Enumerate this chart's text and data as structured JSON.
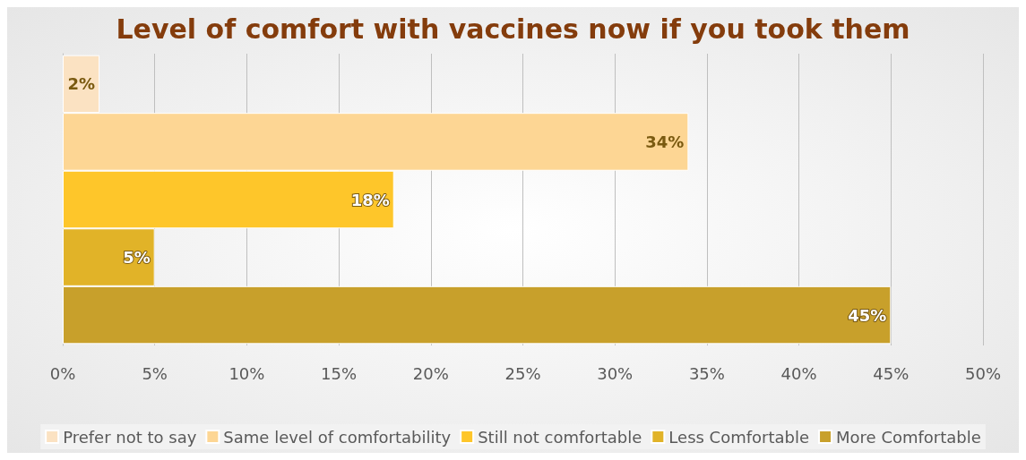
{
  "chart_data": {
    "type": "bar",
    "orientation": "horizontal",
    "title": "Level of comfort with vaccines now if you took them",
    "categories": [
      null
    ],
    "series": [
      {
        "name": "Prefer not to say",
        "color": "#fbe2c2",
        "values": [
          2
        ],
        "value_labels": [
          "2%"
        ]
      },
      {
        "name": "Same level of comfortability",
        "color": "#fdd694",
        "values": [
          34
        ],
        "value_labels": [
          "34%"
        ]
      },
      {
        "name": "Still not comfortable",
        "color": "#fec62a",
        "values": [
          18
        ],
        "value_labels": [
          "18%"
        ]
      },
      {
        "name": "Less Comfortable",
        "color": "#e1b328",
        "values": [
          5
        ],
        "value_labels": [
          "5%"
        ]
      },
      {
        "name": "More Comfortable",
        "color": "#c8a02b",
        "values": [
          45
        ],
        "value_labels": [
          "45%"
        ]
      }
    ],
    "xlim": [
      0,
      50
    ],
    "xticks": [
      {
        "value": 0,
        "label": "0%"
      },
      {
        "value": 5,
        "label": "5%"
      },
      {
        "value": 10,
        "label": "10%"
      },
      {
        "value": 15,
        "label": "15%"
      },
      {
        "value": 20,
        "label": "20%"
      },
      {
        "value": 25,
        "label": "25%"
      },
      {
        "value": 30,
        "label": "30%"
      },
      {
        "value": 35,
        "label": "35%"
      },
      {
        "value": 40,
        "label": "40%"
      },
      {
        "value": 45,
        "label": "45%"
      },
      {
        "value": 50,
        "label": "50%"
      }
    ],
    "grid": "x",
    "legend": "bottom"
  }
}
